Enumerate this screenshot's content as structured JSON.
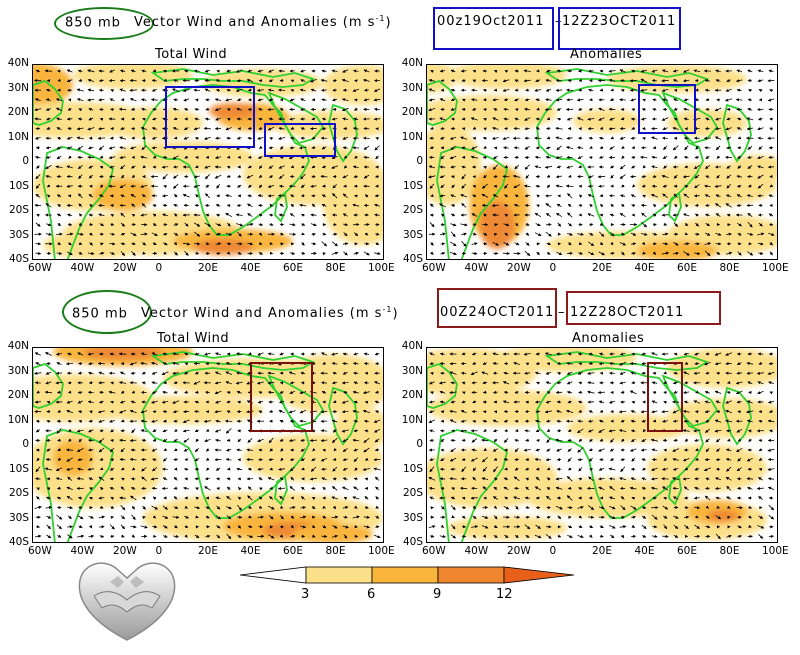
{
  "figures": [
    {
      "header_prefix": "850 mb",
      "header_title": "Vector Wind and Anomalies (m s",
      "header_unit_exp": "-1",
      "header_close": ")",
      "period_start": "00z19Oct2011",
      "period_sep": "–",
      "period_end": "12Z23OCT2011",
      "highlight_color": "#1010c8",
      "panels": [
        {
          "title": "Total Wind",
          "x_ticks": [
            "60W",
            "40W",
            "20W",
            "0",
            "20E",
            "40E",
            "60E",
            "80E",
            "100E"
          ],
          "y_ticks": [
            "40N",
            "30N",
            "20N",
            "10N",
            "0",
            "10S",
            "20S",
            "30S",
            "40S"
          ]
        },
        {
          "title": "Anomalies",
          "x_ticks": [
            "60W",
            "40W",
            "20W",
            "0",
            "20E",
            "40E",
            "60E",
            "80E",
            "100E"
          ],
          "y_ticks": [
            "40N",
            "30N",
            "20N",
            "10N",
            "0",
            "10S",
            "20S",
            "30S",
            "40S"
          ]
        }
      ]
    },
    {
      "header_prefix": "850 mb",
      "header_title": "Vector Wind and Anomalies (m s",
      "header_unit_exp": "-1",
      "header_close": ")",
      "period_start": "00Z24OCT2011",
      "period_sep": "–",
      "period_end": "12Z28OCT2011",
      "highlight_color": "#8b1a1a",
      "panels": [
        {
          "title": "Total Wind",
          "x_ticks": [
            "60W",
            "40W",
            "20W",
            "0",
            "20E",
            "40E",
            "60E",
            "80E",
            "100E"
          ],
          "y_ticks": [
            "40N",
            "30N",
            "20N",
            "10N",
            "0",
            "10S",
            "20S",
            "30S",
            "40S"
          ]
        },
        {
          "title": "Anomalies",
          "x_ticks": [
            "60W",
            "40W",
            "20W",
            "0",
            "20E",
            "40E",
            "60E",
            "80E",
            "100E"
          ],
          "y_ticks": [
            "40N",
            "30N",
            "20N",
            "10N",
            "0",
            "10S",
            "20S",
            "30S",
            "40S"
          ]
        }
      ]
    }
  ],
  "colorbar": {
    "labels": [
      "3",
      "6",
      "9",
      "12"
    ],
    "colors": [
      "#ffffff",
      "#fde08a",
      "#f9b53c",
      "#f08530",
      "#e8601a"
    ]
  },
  "colors": {
    "coastline": "#2fd02f",
    "shade_light": "#fde08a",
    "shade_mid": "#f9b53c",
    "shade_dark": "#ee8a34",
    "ellipse": "#1a7d1a"
  }
}
